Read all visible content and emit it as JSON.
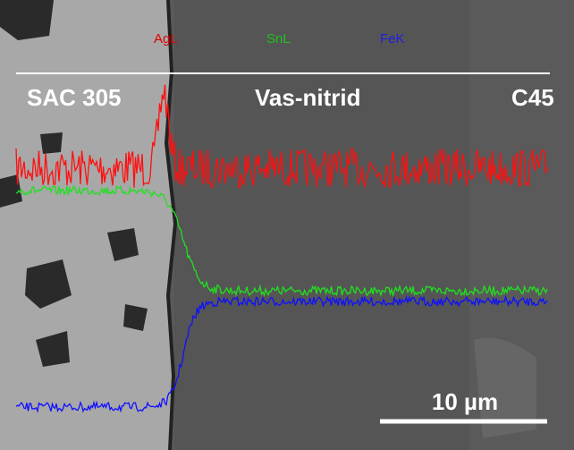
{
  "legend": {
    "items": [
      "AgL",
      "SnL",
      "FeK"
    ]
  },
  "regions": [
    "SAC 305",
    "Vas-nitrid",
    "C45"
  ],
  "scale_bar": {
    "label": "10 µm"
  }
}
